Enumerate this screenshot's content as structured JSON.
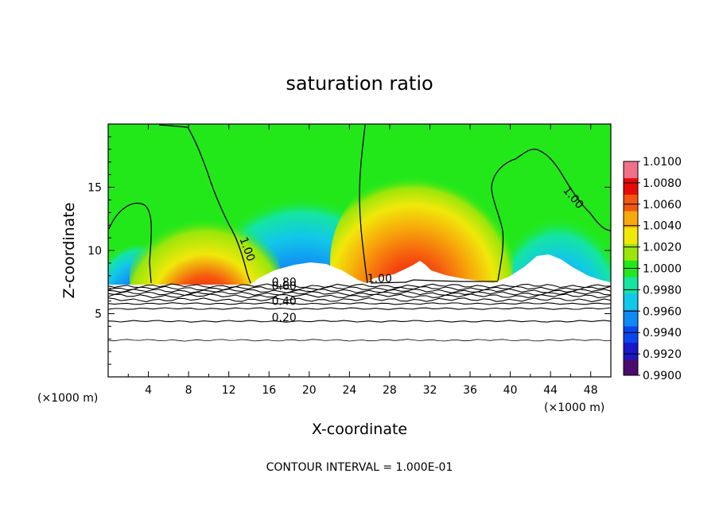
{
  "chart_data": {
    "type": "heatmap",
    "title": "saturation ratio",
    "xlabel": "X-coordinate",
    "ylabel": "Z-coordinate",
    "x_unit": "(×1000 m)",
    "xlim": [
      0,
      50
    ],
    "ylim": [
      0,
      20
    ],
    "x_ticks": [
      4,
      8,
      12,
      16,
      20,
      24,
      28,
      32,
      36,
      40,
      44,
      48
    ],
    "y_ticks": [
      5,
      10,
      15
    ],
    "footer": "CONTOUR INTERVAL = 1.000E-01",
    "colorbar": {
      "levels": [
        "0.9900",
        "0.9920",
        "0.9940",
        "0.9960",
        "0.9980",
        "1.0000",
        "1.0020",
        "1.0040",
        "1.0060",
        "1.0080",
        "1.0100"
      ],
      "colors": [
        "#4a0b6e",
        "#1a16c9",
        "#0a46f0",
        "#0f8af5",
        "#12c8e8",
        "#14e5a0",
        "#22e81a",
        "#9be60a",
        "#f0e80a",
        "#f7a80a",
        "#f5560f",
        "#e80a0a",
        "#f0708a"
      ]
    },
    "contour_labels": [
      {
        "text": "1.00",
        "x": 13.5,
        "y": 10.0
      },
      {
        "text": "1.00",
        "x": 27.0,
        "y": 7.5
      },
      {
        "text": "1.00",
        "x": 46.0,
        "y": 14.0
      },
      {
        "text": "0.80",
        "x": 17.5,
        "y": 7.2
      },
      {
        "text": "0.60",
        "x": 17.5,
        "y": 6.9
      },
      {
        "text": "0.40",
        "x": 17.5,
        "y": 5.7
      },
      {
        "text": "0.20",
        "x": 17.5,
        "y": 4.4
      }
    ],
    "lower_contours_z": [
      7.2,
      7.0,
      6.8,
      6.6,
      6.4,
      6.1,
      5.8,
      5.4,
      4.4,
      2.9
    ]
  }
}
